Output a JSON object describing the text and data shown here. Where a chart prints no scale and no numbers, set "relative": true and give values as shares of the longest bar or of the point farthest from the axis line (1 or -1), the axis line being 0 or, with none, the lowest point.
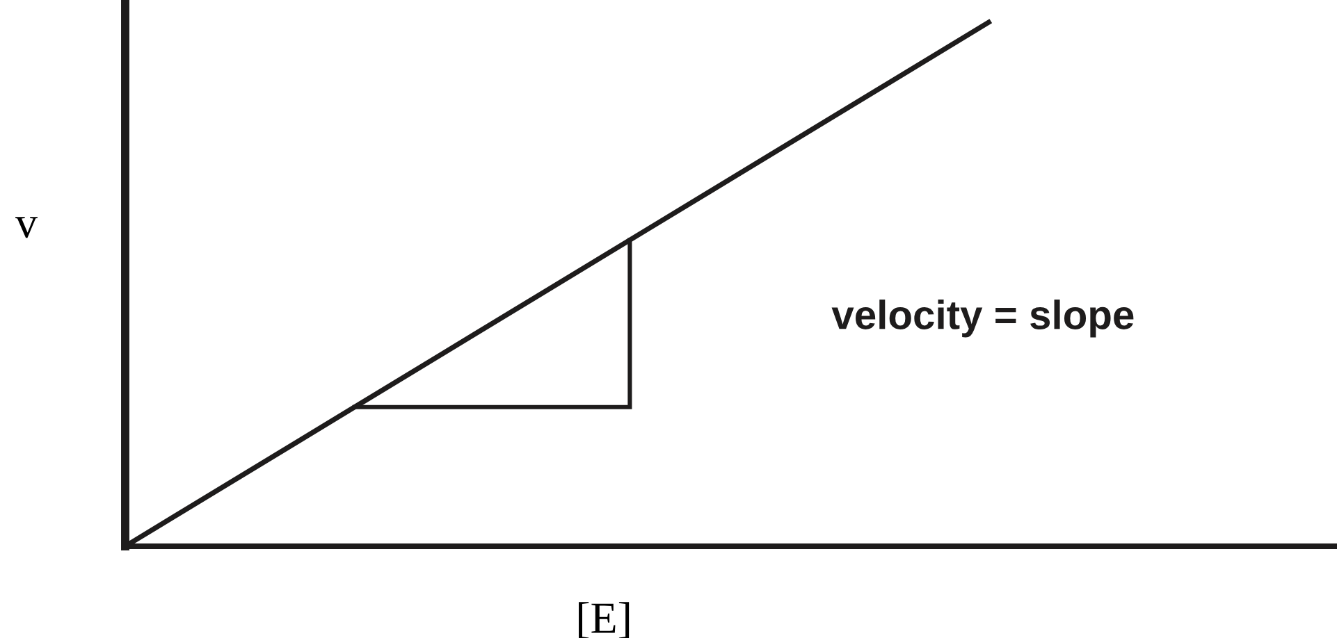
{
  "chart_data": {
    "type": "line",
    "relative": true,
    "xlabel": "[E]",
    "ylabel": "v",
    "annotations": [
      "velocity = slope"
    ],
    "categories": [
      null,
      null,
      null,
      null,
      null,
      null,
      null,
      null
    ],
    "series": [
      {
        "color": "#1e1c1c",
        "values": [
          0,
          0.2,
          0.4,
          0.6,
          0.8,
          1,
          null,
          null
        ]
      }
    ]
  }
}
